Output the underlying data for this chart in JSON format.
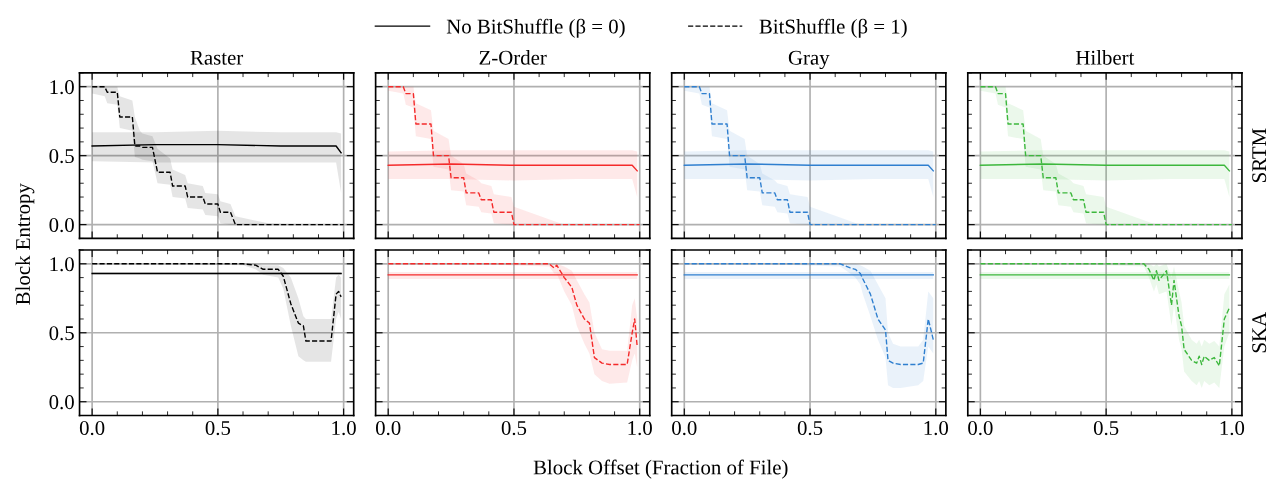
{
  "chart_data": [
    {
      "type": "line",
      "title": "Raster",
      "ylabel": "Block Entropy",
      "legend": "top",
      "grid": true,
      "tick_labels": "y",
      "xlim": [
        -0.05,
        1.04
      ],
      "ylim": [
        -0.1,
        1.1
      ],
      "xticks": [
        0,
        0.5,
        1
      ],
      "yticks": [
        {
          "value": 0,
          "label": "0.0"
        },
        {
          "value": 0.5,
          "label": "0.5"
        },
        {
          "value": 1,
          "label": "1.0"
        }
      ],
      "series": [
        {
          "name": "No BitShuffle (β = 0)",
          "color": "#000000",
          "line_style": "solid",
          "x": [
            0,
            0.25,
            0.5,
            0.75,
            0.97,
            0.99
          ],
          "values": [
            0.57,
            0.58,
            0.58,
            0.57,
            0.57,
            0.52
          ],
          "lower": [
            0.46,
            0.45,
            0.45,
            0.45,
            0.45,
            0.23
          ],
          "upper": [
            0.67,
            0.67,
            0.68,
            0.67,
            0.67,
            0.66
          ]
        },
        {
          "name": "BitShuffle (β = 1)",
          "color": "#000000",
          "line_style": "dashed",
          "x": [
            0,
            0.05,
            0.06,
            0.1,
            0.11,
            0.16,
            0.17,
            0.19,
            0.2,
            0.24,
            0.26,
            0.31,
            0.32,
            0.37,
            0.38,
            0.44,
            0.45,
            0.5,
            0.51,
            0.55,
            0.57,
            0.7,
            0.85,
            1.0
          ],
          "values": [
            1.0,
            1.0,
            0.96,
            0.96,
            0.78,
            0.78,
            0.57,
            0.57,
            0.56,
            0.56,
            0.38,
            0.38,
            0.28,
            0.28,
            0.2,
            0.2,
            0.15,
            0.15,
            0.09,
            0.09,
            0,
            0,
            0,
            0
          ],
          "lower": [
            0.95,
            0.93,
            0.88,
            0.87,
            0.7,
            0.68,
            0.49,
            0.48,
            0.47,
            0.46,
            0.3,
            0.29,
            0.2,
            0.19,
            0.12,
            0.11,
            0.07,
            0.06,
            0.01,
            0,
            0,
            0,
            0,
            0
          ],
          "upper": [
            1.0,
            1.0,
            1.0,
            1.0,
            0.93,
            0.9,
            0.78,
            0.68,
            0.66,
            0.64,
            0.55,
            0.48,
            0.4,
            0.36,
            0.3,
            0.28,
            0.23,
            0.22,
            0.17,
            0.15,
            0.06,
            0.01,
            0,
            0
          ]
        }
      ]
    },
    {
      "type": "line",
      "title": "Z-Order",
      "grid": true,
      "tick_labels": false,
      "xlim": [
        -0.05,
        1.04
      ],
      "ylim": [
        -0.1,
        1.1
      ],
      "xticks": [
        0,
        0.5,
        1
      ],
      "yticks": [
        0,
        0.5,
        1
      ],
      "series": [
        {
          "color": "#f42a2a",
          "line_style": "solid",
          "x": [
            0,
            0.25,
            0.5,
            0.75,
            0.97,
            0.99
          ],
          "values": [
            0.43,
            0.44,
            0.43,
            0.43,
            0.43,
            0.39
          ],
          "lower": [
            0.33,
            0.33,
            0.32,
            0.33,
            0.33,
            0.2
          ],
          "upper": [
            0.53,
            0.54,
            0.54,
            0.54,
            0.54,
            0.53
          ]
        },
        {
          "color": "#f42a2a",
          "line_style": "dashed",
          "x": [
            0,
            0.06,
            0.07,
            0.1,
            0.11,
            0.17,
            0.18,
            0.24,
            0.25,
            0.3,
            0.31,
            0.36,
            0.37,
            0.41,
            0.42,
            0.49,
            0.5,
            0.7,
            0.85,
            1.0
          ],
          "values": [
            1.0,
            1.0,
            0.95,
            0.95,
            0.73,
            0.73,
            0.5,
            0.5,
            0.34,
            0.34,
            0.23,
            0.23,
            0.18,
            0.18,
            0.09,
            0.09,
            0,
            0,
            0,
            0
          ],
          "lower": [
            0.97,
            0.95,
            0.87,
            0.85,
            0.64,
            0.62,
            0.42,
            0.4,
            0.25,
            0.24,
            0.14,
            0.13,
            0.09,
            0.08,
            0.01,
            0,
            0,
            0,
            0,
            0
          ],
          "upper": [
            1.0,
            1.0,
            1.0,
            1.0,
            0.88,
            0.83,
            0.68,
            0.62,
            0.5,
            0.44,
            0.37,
            0.32,
            0.3,
            0.28,
            0.22,
            0.2,
            0.13,
            0,
            0,
            0
          ]
        }
      ]
    },
    {
      "type": "line",
      "title": "Gray",
      "grid": true,
      "tick_labels": false,
      "xlim": [
        -0.05,
        1.04
      ],
      "ylim": [
        -0.1,
        1.1
      ],
      "xticks": [
        0,
        0.5,
        1
      ],
      "yticks": [
        0,
        0.5,
        1
      ],
      "series": [
        {
          "color": "#2f7fcf",
          "line_style": "solid",
          "x": [
            0,
            0.25,
            0.5,
            0.75,
            0.97,
            0.99
          ],
          "values": [
            0.43,
            0.44,
            0.43,
            0.43,
            0.43,
            0.39
          ],
          "lower": [
            0.33,
            0.33,
            0.32,
            0.33,
            0.33,
            0.2
          ],
          "upper": [
            0.53,
            0.54,
            0.54,
            0.54,
            0.54,
            0.53
          ]
        },
        {
          "color": "#2f7fcf",
          "line_style": "dashed",
          "x": [
            0,
            0.06,
            0.07,
            0.1,
            0.11,
            0.17,
            0.18,
            0.24,
            0.25,
            0.3,
            0.31,
            0.36,
            0.37,
            0.41,
            0.42,
            0.49,
            0.5,
            0.7,
            0.85,
            1.0
          ],
          "values": [
            1.0,
            1.0,
            0.95,
            0.95,
            0.73,
            0.73,
            0.5,
            0.5,
            0.34,
            0.34,
            0.23,
            0.23,
            0.18,
            0.18,
            0.09,
            0.09,
            0,
            0,
            0,
            0
          ],
          "lower": [
            0.97,
            0.95,
            0.87,
            0.85,
            0.64,
            0.62,
            0.42,
            0.4,
            0.25,
            0.24,
            0.14,
            0.13,
            0.09,
            0.08,
            0.01,
            0,
            0,
            0,
            0,
            0
          ],
          "upper": [
            1.0,
            1.0,
            1.0,
            1.0,
            0.88,
            0.83,
            0.68,
            0.62,
            0.5,
            0.44,
            0.37,
            0.32,
            0.3,
            0.28,
            0.22,
            0.2,
            0.13,
            0,
            0,
            0
          ]
        }
      ]
    },
    {
      "type": "line",
      "title": "Hilbert",
      "y2label": "SRTM",
      "grid": true,
      "tick_labels": false,
      "xlim": [
        -0.05,
        1.04
      ],
      "ylim": [
        -0.1,
        1.1
      ],
      "xticks": [
        0,
        0.5,
        1
      ],
      "yticks": [
        0,
        0.5,
        1
      ],
      "series": [
        {
          "color": "#3cb73c",
          "line_style": "solid",
          "x": [
            0,
            0.25,
            0.5,
            0.75,
            0.97,
            0.99
          ],
          "values": [
            0.43,
            0.44,
            0.43,
            0.43,
            0.43,
            0.39
          ],
          "lower": [
            0.33,
            0.33,
            0.32,
            0.33,
            0.33,
            0.2
          ],
          "upper": [
            0.53,
            0.54,
            0.54,
            0.54,
            0.54,
            0.53
          ]
        },
        {
          "color": "#3cb73c",
          "line_style": "dashed",
          "x": [
            0,
            0.06,
            0.07,
            0.1,
            0.11,
            0.17,
            0.18,
            0.24,
            0.25,
            0.3,
            0.31,
            0.36,
            0.37,
            0.41,
            0.42,
            0.49,
            0.5,
            0.7,
            0.85,
            1.0
          ],
          "values": [
            1.0,
            1.0,
            0.95,
            0.95,
            0.73,
            0.73,
            0.5,
            0.5,
            0.34,
            0.34,
            0.23,
            0.23,
            0.18,
            0.18,
            0.09,
            0.09,
            0,
            0,
            0,
            0
          ],
          "lower": [
            0.97,
            0.95,
            0.87,
            0.85,
            0.64,
            0.62,
            0.42,
            0.4,
            0.25,
            0.24,
            0.14,
            0.13,
            0.09,
            0.08,
            0.01,
            0,
            0,
            0,
            0,
            0
          ],
          "upper": [
            1.0,
            1.0,
            1.0,
            1.0,
            0.88,
            0.83,
            0.68,
            0.62,
            0.5,
            0.44,
            0.37,
            0.32,
            0.3,
            0.28,
            0.22,
            0.2,
            0.13,
            0,
            0,
            0
          ]
        }
      ]
    },
    {
      "type": "line",
      "grid": true,
      "xlim": [
        -0.05,
        1.04
      ],
      "ylim": [
        -0.1,
        1.1
      ],
      "xticks": [
        {
          "value": 0,
          "label": "0.0"
        },
        {
          "value": 0.5,
          "label": "0.5"
        },
        {
          "value": 1,
          "label": "1.0"
        }
      ],
      "yticks": [
        {
          "value": 0,
          "label": "0.0"
        },
        {
          "value": 0.5,
          "label": "0.5"
        },
        {
          "value": 1,
          "label": "1.0"
        }
      ],
      "series": [
        {
          "color": "#000000",
          "line_style": "solid",
          "x": [
            0,
            0.5,
            0.99
          ],
          "values": [
            0.93,
            0.93,
            0.93
          ],
          "lower": [
            0.92,
            0.92,
            0.92
          ],
          "upper": [
            0.94,
            0.94,
            0.94
          ]
        },
        {
          "color": "#000000",
          "line_style": "dashed",
          "x": [
            0,
            0.3,
            0.6,
            0.65,
            0.68,
            0.74,
            0.76,
            0.79,
            0.82,
            0.84,
            0.85,
            0.95,
            0.97,
            0.98,
            0.99
          ],
          "values": [
            1.0,
            1.0,
            1.0,
            0.99,
            0.96,
            0.96,
            0.91,
            0.71,
            0.57,
            0.55,
            0.44,
            0.44,
            0.78,
            0.8,
            0.76
          ],
          "lower": [
            1.0,
            1.0,
            0.99,
            0.96,
            0.92,
            0.9,
            0.82,
            0.55,
            0.33,
            0.3,
            0.29,
            0.29,
            0.6,
            0.65,
            0.6
          ],
          "upper": [
            1.0,
            1.0,
            1.0,
            1.0,
            0.99,
            0.99,
            0.97,
            0.9,
            0.75,
            0.62,
            0.6,
            0.6,
            0.9,
            0.92,
            0.9
          ]
        }
      ]
    },
    {
      "type": "line",
      "grid": true,
      "tick_labels": "x",
      "xlim": [
        -0.05,
        1.04
      ],
      "ylim": [
        -0.1,
        1.1
      ],
      "xticks": [
        {
          "value": 0,
          "label": "0.0"
        },
        {
          "value": 0.5,
          "label": "0.5"
        },
        {
          "value": 1,
          "label": "1.0"
        }
      ],
      "yticks": [
        0,
        0.5,
        1
      ],
      "series": [
        {
          "color": "#f42a2a",
          "line_style": "solid",
          "x": [
            0,
            0.5,
            0.99
          ],
          "values": [
            0.92,
            0.92,
            0.92
          ],
          "lower": [
            0.89,
            0.89,
            0.89
          ],
          "upper": [
            0.94,
            0.94,
            0.94
          ]
        },
        {
          "color": "#f42a2a",
          "line_style": "dashed",
          "x": [
            0,
            0.3,
            0.64,
            0.66,
            0.67,
            0.7,
            0.73,
            0.75,
            0.78,
            0.8,
            0.82,
            0.85,
            0.88,
            0.95,
            0.97,
            0.98,
            0.99
          ],
          "values": [
            1.0,
            1.0,
            1.0,
            0.97,
            0.99,
            0.9,
            0.83,
            0.7,
            0.6,
            0.57,
            0.32,
            0.28,
            0.27,
            0.27,
            0.5,
            0.6,
            0.4
          ],
          "lower": [
            1.0,
            1.0,
            0.98,
            0.93,
            0.93,
            0.8,
            0.7,
            0.55,
            0.42,
            0.35,
            0.2,
            0.15,
            0.13,
            0.14,
            0.3,
            0.35,
            0.25
          ],
          "upper": [
            1.0,
            1.0,
            1.0,
            1.0,
            1.0,
            0.98,
            0.95,
            0.88,
            0.78,
            0.72,
            0.5,
            0.38,
            0.37,
            0.37,
            0.7,
            0.75,
            0.6
          ]
        }
      ]
    },
    {
      "type": "line",
      "xlabel": "Block Offset (Fraction of File)",
      "grid": true,
      "tick_labels": "x",
      "xlim": [
        -0.05,
        1.04
      ],
      "ylim": [
        -0.1,
        1.1
      ],
      "xticks": [
        {
          "value": 0,
          "label": "0.0"
        },
        {
          "value": 0.5,
          "label": "0.5"
        },
        {
          "value": 1,
          "label": "1.0"
        }
      ],
      "yticks": [
        0,
        0.5,
        1
      ],
      "series": [
        {
          "color": "#2f7fcf",
          "line_style": "solid",
          "x": [
            0,
            0.5,
            0.99
          ],
          "values": [
            0.92,
            0.92,
            0.92
          ],
          "lower": [
            0.89,
            0.89,
            0.89
          ],
          "upper": [
            0.94,
            0.94,
            0.94
          ]
        },
        {
          "color": "#2f7fcf",
          "line_style": "dashed",
          "x": [
            0,
            0.3,
            0.62,
            0.66,
            0.68,
            0.7,
            0.71,
            0.74,
            0.77,
            0.8,
            0.81,
            0.83,
            0.86,
            0.93,
            0.95,
            0.97,
            0.99
          ],
          "values": [
            1.0,
            1.0,
            1.0,
            0.97,
            0.96,
            0.93,
            0.89,
            0.78,
            0.6,
            0.52,
            0.3,
            0.28,
            0.27,
            0.27,
            0.28,
            0.6,
            0.45
          ],
          "lower": [
            1.0,
            1.0,
            0.98,
            0.93,
            0.9,
            0.85,
            0.78,
            0.62,
            0.45,
            0.32,
            0.12,
            0.1,
            0.1,
            0.12,
            0.15,
            0.4,
            0.35
          ],
          "upper": [
            1.0,
            1.0,
            1.0,
            1.0,
            1.0,
            0.99,
            0.98,
            0.95,
            0.85,
            0.75,
            0.5,
            0.42,
            0.4,
            0.4,
            0.45,
            0.8,
            0.75
          ]
        }
      ]
    },
    {
      "type": "line",
      "y2label": "SKA",
      "grid": true,
      "tick_labels": "x",
      "xlim": [
        -0.05,
        1.04
      ],
      "ylim": [
        -0.1,
        1.1
      ],
      "xticks": [
        {
          "value": 0,
          "label": "0.0"
        },
        {
          "value": 0.5,
          "label": "0.5"
        },
        {
          "value": 1,
          "label": "1.0"
        }
      ],
      "yticks": [
        0,
        0.5,
        1
      ],
      "series": [
        {
          "color": "#3cb73c",
          "line_style": "solid",
          "x": [
            0,
            0.5,
            0.99
          ],
          "values": [
            0.92,
            0.92,
            0.92
          ],
          "lower": [
            0.89,
            0.89,
            0.89
          ],
          "upper": [
            0.94,
            0.94,
            0.94
          ]
        },
        {
          "color": "#3cb73c",
          "line_style": "dashed",
          "x": [
            0,
            0.3,
            0.65,
            0.67,
            0.69,
            0.7,
            0.71,
            0.74,
            0.76,
            0.77,
            0.79,
            0.8,
            0.81,
            0.84,
            0.86,
            0.87,
            0.88,
            0.89,
            0.91,
            0.93,
            0.95,
            0.97,
            0.99
          ],
          "values": [
            1.0,
            1.0,
            1.0,
            0.96,
            0.88,
            0.95,
            0.88,
            0.95,
            0.7,
            0.88,
            0.62,
            0.55,
            0.38,
            0.3,
            0.28,
            0.33,
            0.27,
            0.33,
            0.3,
            0.32,
            0.26,
            0.6,
            0.68
          ],
          "lower": [
            1.0,
            1.0,
            0.98,
            0.9,
            0.8,
            0.85,
            0.78,
            0.8,
            0.55,
            0.7,
            0.45,
            0.38,
            0.22,
            0.15,
            0.12,
            0.15,
            0.1,
            0.15,
            0.12,
            0.14,
            0.1,
            0.4,
            0.5
          ],
          "upper": [
            1.0,
            1.0,
            1.0,
            1.0,
            0.98,
            1.0,
            0.98,
            1.0,
            0.9,
            0.98,
            0.8,
            0.72,
            0.55,
            0.45,
            0.42,
            0.45,
            0.4,
            0.45,
            0.42,
            0.44,
            0.4,
            0.78,
            0.85
          ]
        }
      ]
    }
  ]
}
